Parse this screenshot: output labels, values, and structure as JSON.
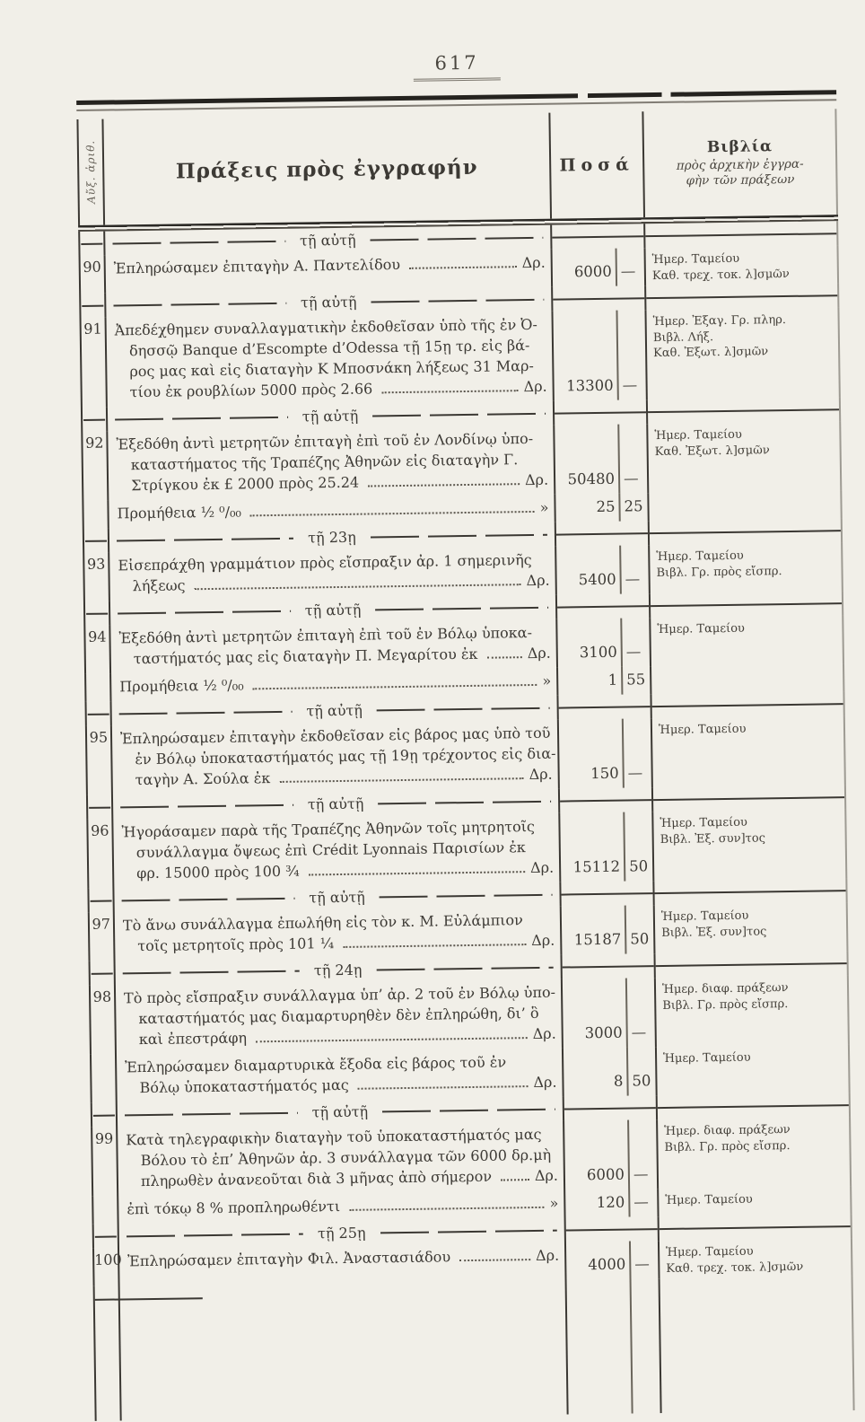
{
  "page_number": "617",
  "header": {
    "index_col": "Αὔξ. ἀριθ.",
    "acts_col": "Πράξεις πρὸς ἐγγραφήν",
    "amounts_col": "Ποσά",
    "books_col_title": "Βιβλία",
    "books_col_sub1": "πρὸς ἀρχικὴν ἐγγρα-",
    "books_col_sub2": "φὴν τῶν πράξεων"
  },
  "rows": [
    {
      "no": "90",
      "date": "τῇ αὐτῇ",
      "groups": [
        {
          "lines": [
            "Ἐπληρώσαμεν ἐπιταγὴν Α. Παντελίδου"
          ],
          "unit": "Δρ.",
          "amount_int": "6000",
          "amount_dec": "—",
          "books": [
            "Ἡμερ. Ταμείου",
            "Καθ. τρεχ. τοκ. λ]σμῶν"
          ]
        }
      ]
    },
    {
      "no": "91",
      "date": "τῇ αὐτῇ",
      "groups": [
        {
          "lines": [
            "Ἀπεδέχθημεν συναλλαγματικὴν ἐκδοθεῖσαν ὑπὸ τῆς ἐν Ὀ-",
            "δησσῷ Banque d’Escompte d’Odessa τῇ 15ῃ τρ. εἰς βά-",
            "ρος μας καὶ εἰς διαταγὴν Κ Μποσνάκη λήξεως 31 Μαρ-",
            "τίου ἐκ ρουβλίων 5000 πρὸς 2.66"
          ],
          "unit": "Δρ.",
          "amount_int": "13300",
          "amount_dec": "—",
          "books": [
            "Ἡμερ. Ἐξαγ. Γρ. πληρ.",
            "Βιβλ. Λήξ.",
            "Καθ. Ἐξωτ. λ]σμῶν"
          ]
        }
      ]
    },
    {
      "no": "92",
      "date": "τῇ αὐτῇ",
      "groups": [
        {
          "lines": [
            "Ἐξεδόθη ἀντὶ μετρητῶν ἐπιταγὴ ἐπὶ τοῦ ἐν Λονδίνῳ ὑπο-",
            "καταστήματος τῆς Τραπέζης Ἀθηνῶν εἰς διαταγὴν Γ.",
            "Στρίγκου ἐκ £ 2000 πρὸς 25.24"
          ],
          "unit": "Δρ.",
          "amount_int": "50480",
          "amount_dec": "—",
          "books": [
            "Ἡμερ. Ταμείου",
            "Καθ. Ἐξωτ. λ]σμῶν"
          ]
        },
        {
          "lines": [
            "Προμήθεια ½ ⁰/₀₀"
          ],
          "unit": "»",
          "amount_int": "25",
          "amount_dec": "25",
          "books": []
        }
      ]
    },
    {
      "no": "93",
      "date": "τῇ 23ῃ",
      "groups": [
        {
          "lines": [
            "Εἰσεπράχθη γραμμάτιον πρὸς εἴσπραξιν ἀρ. 1 σημερινῆς",
            "λήξεως"
          ],
          "unit": "Δρ.",
          "amount_int": "5400",
          "amount_dec": "—",
          "books": [
            "Ἡμερ. Ταμείου",
            "Βιβλ. Γρ. πρὸς εἴσπρ."
          ]
        }
      ]
    },
    {
      "no": "94",
      "date": "τῇ αὐτῇ",
      "groups": [
        {
          "lines": [
            "Ἐξεδόθη ἀντὶ μετρητῶν ἐπιταγὴ ἐπὶ τοῦ ἐν Βόλῳ ὑποκα-",
            "ταστήματός μας εἰς διαταγὴν Π. Μεγαρίτου ἐκ"
          ],
          "unit": "Δρ.",
          "amount_int": "3100",
          "amount_dec": "—",
          "books": [
            "Ἡμερ. Ταμείου"
          ]
        },
        {
          "lines": [
            "Προμήθεια ½ ⁰/₀₀"
          ],
          "unit": "»",
          "amount_int": "1",
          "amount_dec": "55",
          "books": []
        }
      ]
    },
    {
      "no": "95",
      "date": "τῇ αὐτῇ",
      "groups": [
        {
          "lines": [
            "Ἐπληρώσαμεν ἐπιταγὴν ἐκδοθεῖσαν εἰς βάρος μας ὑπὸ τοῦ",
            "ἐν Βόλῳ ὑποκαταστήματός μας τῇ 19ῃ τρέχοντος εἰς δια-",
            "ταγὴν Α. Σούλα ἐκ"
          ],
          "unit": "Δρ.",
          "amount_int": "150",
          "amount_dec": "—",
          "books": [
            "Ἡμερ. Ταμείου"
          ]
        }
      ]
    },
    {
      "no": "96",
      "date": "τῇ αὐτῇ",
      "groups": [
        {
          "lines": [
            "Ἠγοράσαμεν παρὰ τῆς Τραπέζης Ἀθηνῶν τοῖς μητρητοῖς",
            "συνάλλαγμα ὄψεως ἐπὶ Crédit Lyonnais Παρισίων ἐκ",
            "φρ. 15000 πρὸς 100 ¾"
          ],
          "unit": "Δρ.",
          "amount_int": "15112",
          "amount_dec": "50",
          "books": [
            "Ἡμερ. Ταμείου",
            "Βιβλ. Ἐξ. συν]τος"
          ]
        }
      ]
    },
    {
      "no": "97",
      "date": "τῇ αὐτῇ",
      "groups": [
        {
          "lines": [
            "Τὸ ἄνω συνάλλαγμα ἐπωλήθη εἰς τὸν κ. Μ. Εὐλάμπιον",
            "τοῖς μετρητοῖς πρὸς 101 ¼"
          ],
          "unit": "Δρ.",
          "amount_int": "15187",
          "amount_dec": "50",
          "books": [
            "Ἡμερ. Ταμείου",
            "Βιβλ. Ἐξ. συν]τος"
          ]
        }
      ]
    },
    {
      "no": "98",
      "date": "τῇ 24ῃ",
      "groups": [
        {
          "lines": [
            "Τὸ πρὸς εἴσπραξιν συνάλλαγμα ὑπ’ ἀρ. 2 τοῦ ἐν Βόλῳ ὑπο-",
            "καταστήματός μας διαμαρτυρηθὲν δὲν ἐπληρώθη, δι’ ὃ",
            "καὶ ἐπεστράφη"
          ],
          "unit": "Δρ.",
          "amount_int": "3000",
          "amount_dec": "—",
          "books": [
            "Ἡμερ. διαφ. πράξεων",
            "Βιβλ. Γρ. πρὸς εἴσπρ."
          ]
        },
        {
          "lines": [
            "Ἐπληρώσαμεν διαμαρτυρικὰ ἔξοδα εἰς βάρος τοῦ ἐν",
            "Βόλῳ ὑποκαταστήματός μας"
          ],
          "unit": "Δρ.",
          "amount_int": "8",
          "amount_dec": "50",
          "books": [
            "Ἡμερ. Ταμείου"
          ]
        }
      ]
    },
    {
      "no": "99",
      "date": "τῇ αὐτῇ",
      "groups": [
        {
          "lines": [
            "Κατὰ τηλεγραφικὴν διαταγὴν τοῦ ὑποκαταστήματός μας",
            "Βόλου τὸ ἐπ’ Ἀθηνῶν ἀρ. 3 συνάλλαγμα τῶν 6000 δρ.μὴ",
            "πληρωθὲν ἀνανεοῦται διὰ 3 μῆνας ἀπὸ σήμερον"
          ],
          "unit": "Δρ.",
          "amount_int": "6000",
          "amount_dec": "—",
          "books": [
            "Ἡμερ. διαφ. πράξεων",
            "Βιβλ. Γρ. πρὸς εἴσπρ."
          ]
        },
        {
          "lines": [
            "ἐπὶ τόκῳ 8 % προπληρωθέντι"
          ],
          "unit": "»",
          "amount_int": "120",
          "amount_dec": "—",
          "books": [
            "Ἡμερ. Ταμείου"
          ]
        }
      ]
    },
    {
      "no": "100",
      "date": "τῇ 25ῃ",
      "groups": [
        {
          "lines": [
            "Ἐπληρώσαμεν ἐπιταγὴν Φιλ. Ἀναστασιάδου"
          ],
          "unit": "Δρ.",
          "amount_int": "4000",
          "amount_dec": "—",
          "books": [
            "Ἡμερ. Ταμείου",
            "Καθ. τρεχ. τοκ. λ]σμῶν"
          ]
        }
      ]
    }
  ]
}
